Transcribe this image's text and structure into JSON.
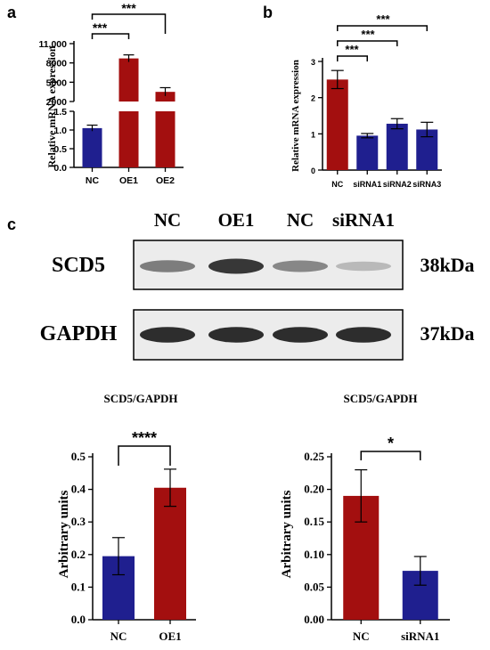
{
  "colors": {
    "nc": "#1f1f8f",
    "treat": "#a30f0f",
    "axis": "#000000"
  },
  "panel_labels": {
    "a": "a",
    "b": "b",
    "c": "c"
  },
  "blot": {
    "lanes": [
      "NC",
      "OE1",
      "NC",
      "siRNA1"
    ],
    "rows": [
      {
        "name": "SCD5",
        "size": "38kDa",
        "intensity": [
          0.55,
          0.9,
          0.5,
          0.25
        ]
      },
      {
        "name": "GAPDH",
        "size": "37kDa",
        "intensity": [
          0.95,
          0.95,
          0.95,
          0.95
        ]
      }
    ]
  },
  "chart_data": [
    {
      "panel": "a",
      "type": "bar",
      "ylabel": "Relative  mRNA expression",
      "categories": [
        "NC",
        "OE1",
        "OE2"
      ],
      "values": [
        1.05,
        8700,
        3500
      ],
      "errors": [
        0.08,
        550,
        650
      ],
      "colors": [
        "#1f1f8f",
        "#a30f0f",
        "#a30f0f"
      ],
      "y_axis_break": true,
      "lower_segment": {
        "ylim": [
          0,
          1.5
        ],
        "ticks": [
          "0.0",
          "0.5",
          "1.0",
          "1.5"
        ]
      },
      "upper_segment": {
        "ylim": [
          2000,
          11000
        ],
        "ticks": [
          "2000",
          "5000",
          "8000",
          "11,000"
        ]
      },
      "significance": [
        {
          "pair": [
            "NC",
            "OE1"
          ],
          "label": "***"
        },
        {
          "pair": [
            "NC",
            "OE2"
          ],
          "label": "***"
        }
      ]
    },
    {
      "panel": "b",
      "type": "bar",
      "ylabel": "Relative mRNA expression",
      "categories": [
        "NC",
        "siRNA1",
        "siRNA2",
        "siRNA3"
      ],
      "values": [
        2.5,
        0.95,
        1.28,
        1.12
      ],
      "errors": [
        0.25,
        0.06,
        0.14,
        0.2
      ],
      "colors": [
        "#a30f0f",
        "#1f1f8f",
        "#1f1f8f",
        "#1f1f8f"
      ],
      "ylim": [
        0,
        3
      ],
      "ticks": [
        "0",
        "1",
        "2",
        "3"
      ],
      "significance": [
        {
          "pair": [
            "NC",
            "siRNA1"
          ],
          "label": "***"
        },
        {
          "pair": [
            "NC",
            "siRNA2"
          ],
          "label": "***"
        },
        {
          "pair": [
            "NC",
            "siRNA3"
          ],
          "label": "***"
        }
      ]
    },
    {
      "panel": "c-left",
      "type": "bar",
      "title": "SCD5/GAPDH",
      "ylabel": "Arbitrary units",
      "categories": [
        "NC",
        "OE1"
      ],
      "values": [
        0.195,
        0.405
      ],
      "errors": [
        0.057,
        0.057
      ],
      "colors": [
        "#1f1f8f",
        "#a30f0f"
      ],
      "ylim": [
        0,
        0.5
      ],
      "ticks": [
        "0.0",
        "0.1",
        "0.2",
        "0.3",
        "0.4",
        "0.5"
      ],
      "significance": [
        {
          "pair": [
            "NC",
            "OE1"
          ],
          "label": "****"
        }
      ]
    },
    {
      "panel": "c-right",
      "type": "bar",
      "title": "SCD5/GAPDH",
      "ylabel": "Arbitrary units",
      "categories": [
        "NC",
        "siRNA1"
      ],
      "values": [
        0.19,
        0.075
      ],
      "errors": [
        0.04,
        0.022
      ],
      "colors": [
        "#a30f0f",
        "#1f1f8f"
      ],
      "ylim": [
        0,
        0.25
      ],
      "ticks": [
        "0.00",
        "0.05",
        "0.10",
        "0.15",
        "0.20",
        "0.25"
      ],
      "significance": [
        {
          "pair": [
            "NC",
            "siRNA1"
          ],
          "label": "*"
        }
      ]
    }
  ]
}
